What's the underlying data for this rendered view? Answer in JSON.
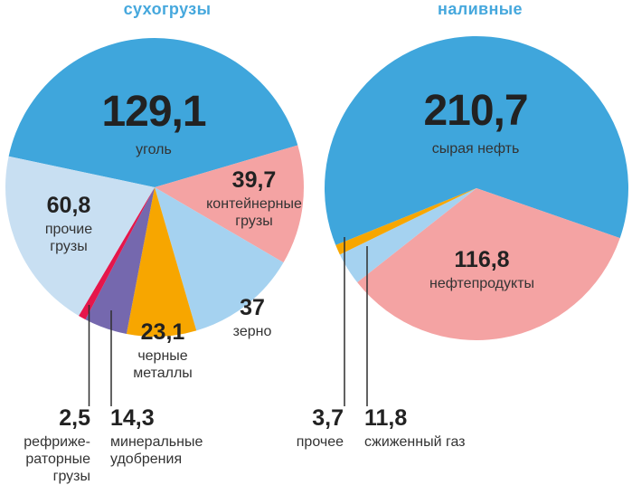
{
  "page": {
    "background": "#ffffff",
    "accent_title_color": "#46a8dd",
    "number_color": "#222222",
    "caption_color": "#333333",
    "leader_line_color": "#2f2f2f"
  },
  "chart_data": [
    {
      "type": "pie",
      "title": "сухогрузы",
      "legend_position": "callout-labels",
      "start_angle_deg": 168,
      "clockwise": true,
      "segments": [
        {
          "id": "coal",
          "label": "уголь",
          "value": 129.1,
          "value_label": "129,1",
          "display_label": "уголь",
          "color": "#3fa6dc"
        },
        {
          "id": "container-cargo",
          "label": "контейнерные грузы",
          "value": 39.7,
          "value_label": "39,7",
          "display_label": "контейнерные\nгрузы",
          "color": "#f4a3a3"
        },
        {
          "id": "grain",
          "label": "зерно",
          "value": 37,
          "value_label": "37",
          "display_label": "зерно",
          "color": "#a5d2f0"
        },
        {
          "id": "ferrous-metals",
          "label": "черные металлы",
          "value": 23.1,
          "value_label": "23,1",
          "display_label": "черные\nметаллы",
          "color": "#f7a600"
        },
        {
          "id": "mineral-fertilizers",
          "label": "минеральные удобрения",
          "value": 14.3,
          "value_label": "14,3",
          "display_label": "минеральные\nудобрения",
          "color": "#7568ae"
        },
        {
          "id": "refrigerated-cargo",
          "label": "рефрижераторные грузы",
          "value": 2.5,
          "value_label": "2,5",
          "display_label": "рефриже-\nраторные\nгрузы",
          "color": "#e5164b"
        },
        {
          "id": "other-dry-cargo",
          "label": "прочие грузы",
          "value": 60.8,
          "value_label": "60,8",
          "display_label": "прочие\nгрузы",
          "color": "#c8dff2"
        }
      ]
    },
    {
      "type": "pie",
      "title": "наливные",
      "legend_position": "callout-labels",
      "start_angle_deg": 202,
      "clockwise": true,
      "segments": [
        {
          "id": "crude-oil",
          "label": "сырая нефть",
          "value": 210.7,
          "value_label": "210,7",
          "display_label": "сырая нефть",
          "color": "#3fa6dc"
        },
        {
          "id": "oil-products",
          "label": "нефтепродукты",
          "value": 116.8,
          "value_label": "116,8",
          "display_label": "нефтепродукты",
          "color": "#f4a3a3"
        },
        {
          "id": "liquefied-gas",
          "label": "сжиженный газ",
          "value": 11.8,
          "value_label": "11,8",
          "display_label": "сжиженный газ",
          "color": "#a5d2f0"
        },
        {
          "id": "other-liquid",
          "label": "прочее",
          "value": 3.7,
          "value_label": "3,7",
          "display_label": "прочее",
          "color": "#f7a600"
        }
      ]
    }
  ]
}
